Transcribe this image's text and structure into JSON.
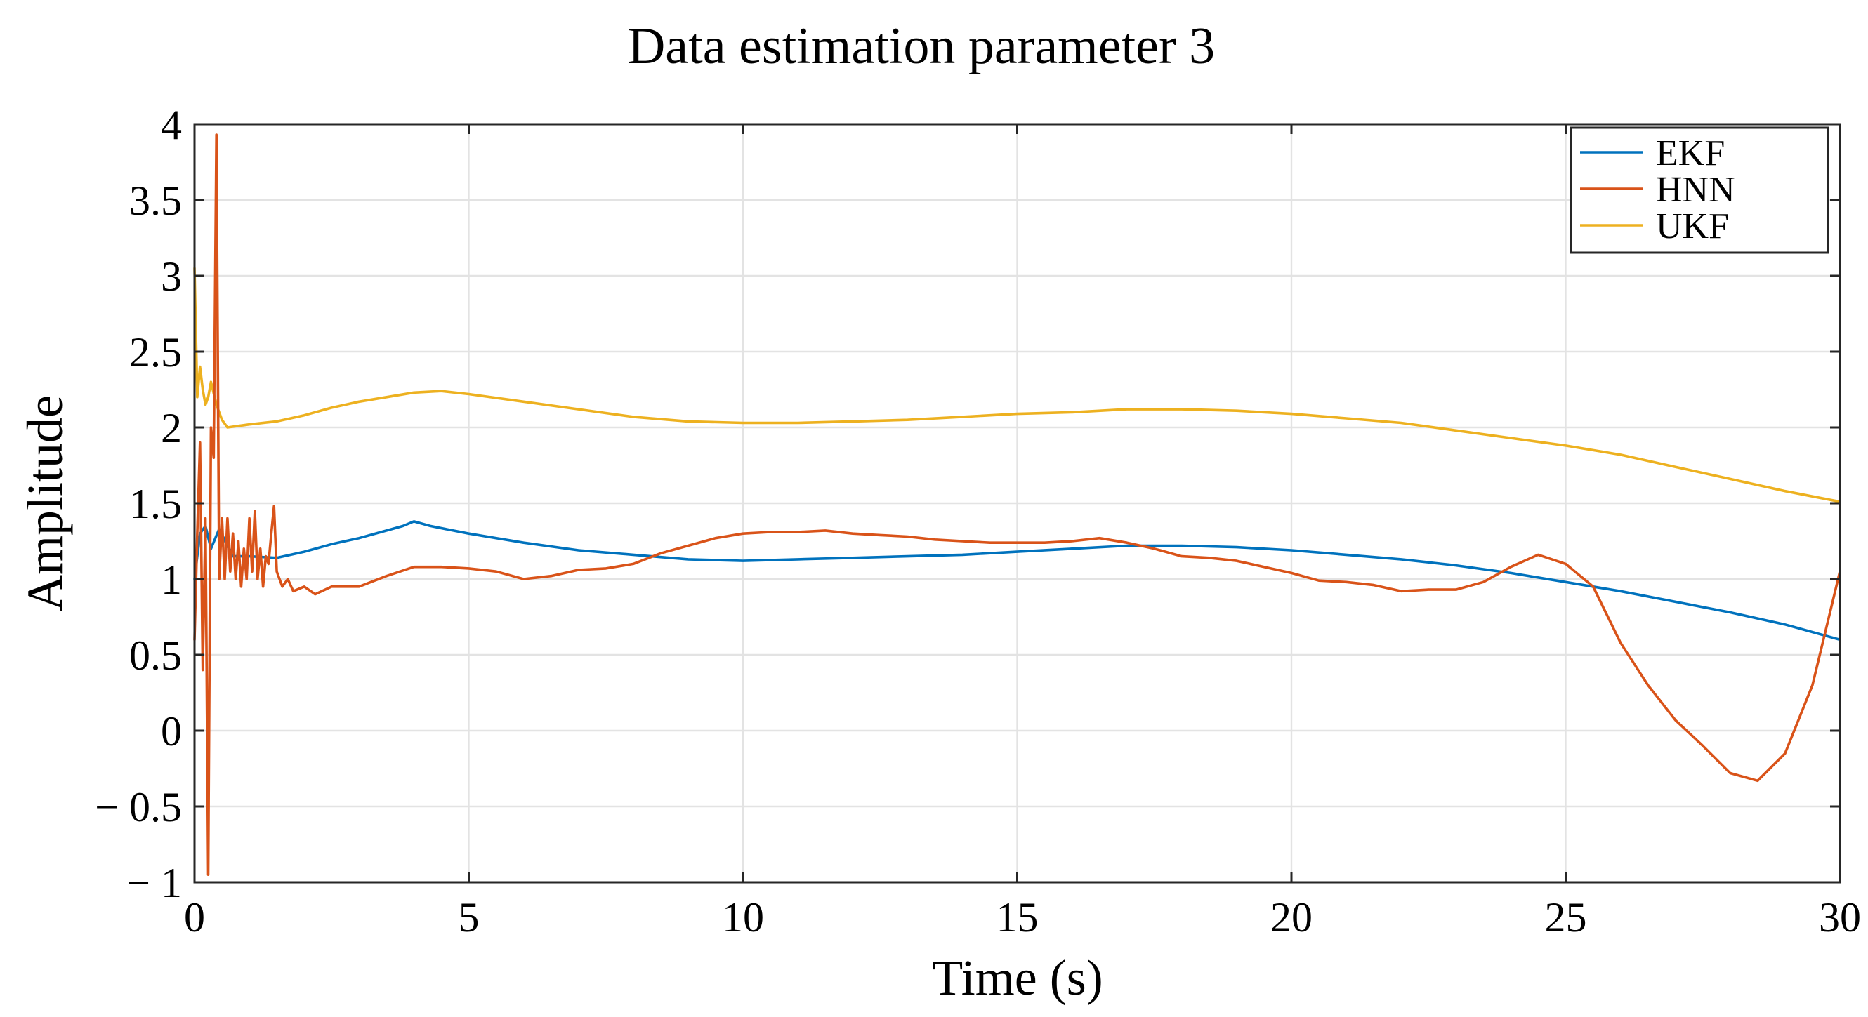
{
  "chart_data": {
    "type": "line",
    "title": "Data estimation parameter 3",
    "xlabel": "Time (s)",
    "ylabel": "Amplitude",
    "xlim": [
      0,
      30
    ],
    "ylim": [
      -1,
      4
    ],
    "xticks": [
      0,
      5,
      10,
      15,
      20,
      25,
      30
    ],
    "xtick_labels": [
      "0",
      "5",
      "10",
      "15",
      "20",
      "25",
      "30"
    ],
    "yticks": [
      -1,
      -0.5,
      0,
      0.5,
      1,
      1.5,
      2,
      2.5,
      3,
      3.5,
      4
    ],
    "ytick_labels": [
      "− 1",
      "− 0.5",
      "0",
      "0.5",
      "1",
      "1.5",
      "2",
      "2.5",
      "3",
      "3.5",
      "4"
    ],
    "grid": true,
    "legend_position": "top-right",
    "series": [
      {
        "name": "EKF",
        "color": "#0072bd",
        "x": [
          0,
          0.1,
          0.2,
          0.3,
          0.45,
          0.7,
          1,
          1.5,
          2,
          2.5,
          3,
          3.5,
          3.8,
          4,
          4.3,
          5,
          6,
          7,
          8,
          9,
          10,
          11,
          12,
          13,
          14,
          15,
          16,
          17,
          18,
          19,
          20,
          21,
          22,
          23,
          24,
          25,
          26,
          27,
          28,
          29,
          30
        ],
        "y": [
          1.0,
          1.3,
          1.35,
          1.2,
          1.33,
          1.15,
          1.15,
          1.14,
          1.18,
          1.23,
          1.27,
          1.32,
          1.35,
          1.38,
          1.35,
          1.3,
          1.24,
          1.19,
          1.16,
          1.13,
          1.12,
          1.13,
          1.14,
          1.15,
          1.16,
          1.18,
          1.2,
          1.22,
          1.22,
          1.21,
          1.19,
          1.16,
          1.13,
          1.09,
          1.04,
          0.98,
          0.92,
          0.85,
          0.78,
          0.7,
          0.6
        ]
      },
      {
        "name": "HNN",
        "color": "#d95319",
        "x": [
          0,
          0.05,
          0.1,
          0.15,
          0.2,
          0.25,
          0.3,
          0.35,
          0.4,
          0.45,
          0.5,
          0.55,
          0.6,
          0.65,
          0.7,
          0.75,
          0.8,
          0.85,
          0.9,
          0.95,
          1,
          1.05,
          1.1,
          1.15,
          1.2,
          1.25,
          1.3,
          1.35,
          1.4,
          1.45,
          1.5,
          1.6,
          1.7,
          1.8,
          2,
          2.2,
          2.5,
          3,
          3.5,
          4,
          4.5,
          5,
          5.5,
          6,
          6.5,
          7,
          7.5,
          8,
          8.5,
          9,
          9.5,
          10,
          10.5,
          11,
          11.5,
          12,
          12.5,
          13,
          13.5,
          14,
          14.5,
          15,
          15.5,
          16,
          16.5,
          17,
          17.5,
          18,
          18.5,
          19,
          19.5,
          20,
          20.5,
          21,
          21.5,
          22,
          22.5,
          23,
          23.5,
          24,
          24.5,
          25,
          25.5,
          26,
          26.5,
          27,
          27.5,
          28,
          28.5,
          29,
          29.5,
          30
        ],
        "y": [
          0.6,
          1.3,
          1.9,
          0.4,
          1.4,
          -0.95,
          2.0,
          1.8,
          3.93,
          1.0,
          1.4,
          1.0,
          1.4,
          1.05,
          1.3,
          1.0,
          1.25,
          0.95,
          1.2,
          1.0,
          1.4,
          1.05,
          1.45,
          1.0,
          1.2,
          0.95,
          1.15,
          1.1,
          1.3,
          1.48,
          1.05,
          0.95,
          1.0,
          0.92,
          0.95,
          0.9,
          0.95,
          0.95,
          1.02,
          1.08,
          1.08,
          1.07,
          1.05,
          1.0,
          1.02,
          1.06,
          1.07,
          1.1,
          1.17,
          1.22,
          1.27,
          1.3,
          1.31,
          1.31,
          1.32,
          1.3,
          1.29,
          1.28,
          1.26,
          1.25,
          1.24,
          1.24,
          1.24,
          1.25,
          1.27,
          1.24,
          1.2,
          1.15,
          1.14,
          1.12,
          1.08,
          1.04,
          0.99,
          0.98,
          0.96,
          0.92,
          0.93,
          0.93,
          0.98,
          1.08,
          1.16,
          1.1,
          0.95,
          0.58,
          0.3,
          0.07,
          -0.1,
          -0.28,
          -0.33,
          -0.15,
          0.3,
          1.05
        ]
      },
      {
        "name": "UKF",
        "color": "#edb120",
        "x": [
          0,
          0.05,
          0.1,
          0.15,
          0.2,
          0.25,
          0.3,
          0.4,
          0.5,
          0.6,
          0.8,
          1,
          1.5,
          2,
          2.5,
          3,
          3.5,
          4,
          4.5,
          5,
          6,
          7,
          8,
          9,
          10,
          11,
          12,
          13,
          14,
          15,
          16,
          17,
          18,
          19,
          20,
          21,
          22,
          23,
          24,
          25,
          26,
          27,
          28,
          29,
          30
        ],
        "y": [
          3.05,
          2.2,
          2.4,
          2.25,
          2.15,
          2.2,
          2.3,
          2.15,
          2.05,
          2.0,
          2.01,
          2.02,
          2.04,
          2.08,
          2.13,
          2.17,
          2.2,
          2.23,
          2.24,
          2.22,
          2.17,
          2.12,
          2.07,
          2.04,
          2.03,
          2.03,
          2.04,
          2.05,
          2.07,
          2.09,
          2.1,
          2.12,
          2.12,
          2.11,
          2.09,
          2.06,
          2.03,
          1.98,
          1.93,
          1.88,
          1.82,
          1.74,
          1.66,
          1.58,
          1.51
        ]
      }
    ]
  }
}
